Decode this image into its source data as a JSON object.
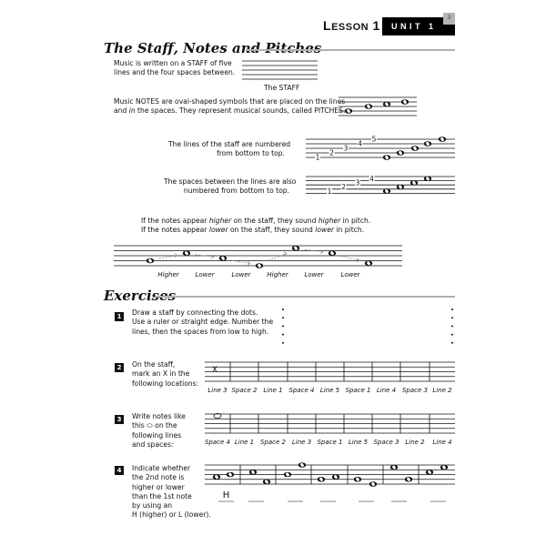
{
  "header": {
    "lesson_prefix": "L",
    "lesson_rest": "ESSON",
    "lesson_number": "1",
    "unit": "UNIT 1",
    "page_number": "3"
  },
  "section1": {
    "title": "The Staff, Notes and Pitches",
    "staff_text": [
      "Music is written on a STAFF of five",
      "lines and the four spaces between."
    ],
    "staff_caption": "The STAFF",
    "notes_text": [
      "Music NOTES are oval-shaped symbols that are placed on the lines",
      "in",
      " the spaces.  They represent musical sounds, called PITCHES.",
      "and "
    ],
    "lines_text": [
      "The lines of the staff are numbered",
      "from bottom to top."
    ],
    "spaces_text": [
      "The spaces between the lines are also",
      "numbered from bottom to top."
    ],
    "pitch_text": {
      "line1": [
        "If the notes appear ",
        "higher",
        " on the staff, they sound ",
        "higher",
        " in pitch."
      ],
      "line2": [
        "If the notes appear ",
        "lower",
        " on the staff, they sound ",
        "lower",
        " in pitch."
      ]
    },
    "line_numbers": [
      "1",
      "2",
      "3",
      "4",
      "5"
    ],
    "space_numbers": [
      "1",
      "2",
      "3",
      "4"
    ],
    "notes_staff_steps": [
      2,
      4,
      5,
      6
    ],
    "line_staff_steps": [
      0,
      2,
      4,
      6,
      8
    ],
    "space_staff_steps": [
      1,
      3,
      5,
      7
    ],
    "pitch_staff_steps": [
      2,
      5,
      3,
      0,
      7,
      5,
      1
    ],
    "pitch_labels": [
      "Higher",
      "Lower",
      "Lower",
      "Higher",
      "Lower",
      "Lower"
    ]
  },
  "exercises": {
    "title": "Exercises",
    "items": [
      {
        "number": "1",
        "text": [
          "Draw a staff by connecting the dots.",
          "Use a ruler or straight edge.  Number the",
          "lines, then the spaces from low to high."
        ]
      },
      {
        "number": "2",
        "text": [
          "On the staff,",
          "mark an X in the",
          "following locations:"
        ],
        "example_mark": "X",
        "labels": [
          "Line 3",
          "Space 2",
          "Line 1",
          "Space 4",
          "Line 5",
          "Space 1",
          "Line 4",
          "Space 3",
          "Line 2"
        ]
      },
      {
        "number": "3",
        "text": [
          "Write notes like",
          "this ⬭ on the",
          "following lines",
          "and spaces:"
        ],
        "labels": [
          "Space 4",
          "Line 1",
          "Space 2",
          "Line 3",
          "Space 1",
          "Line 5",
          "Space 3",
          "Line 2",
          "Line 4"
        ]
      },
      {
        "number": "4",
        "text": [
          "Indicate whether",
          "the 2nd note is",
          "higher or lower",
          "than the 1st note",
          "by using an",
          "H (higher) or L (lower)."
        ],
        "pairs": [
          [
            3,
            4
          ],
          [
            5,
            1
          ],
          [
            4,
            8
          ],
          [
            2,
            3
          ],
          [
            2,
            0
          ],
          [
            7,
            2
          ],
          [
            5,
            7
          ]
        ],
        "answers": [
          "H",
          "",
          "",
          "",
          "",
          "",
          ""
        ]
      }
    ]
  },
  "colors": {
    "ink": "#111111",
    "rule": "#b0b0b0",
    "arrow": "#888888",
    "tab": "#b5b5b5"
  }
}
